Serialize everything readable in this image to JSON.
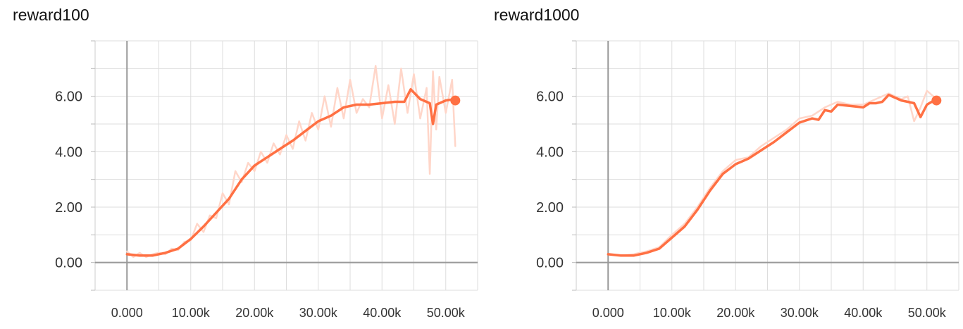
{
  "colors": {
    "line": "#ff7043",
    "raw": "#ffd6c9",
    "grid": "#dddddd",
    "axis": "#999999",
    "tick_text": "#333333"
  },
  "chart_data": [
    {
      "type": "line",
      "title": "reward100",
      "xlim": [
        -5000,
        55000
      ],
      "ylim": [
        -1,
        8
      ],
      "grid": true,
      "x_ticks": [
        0,
        10000,
        20000,
        30000,
        40000,
        50000
      ],
      "x_tick_labels": [
        "0.000",
        "10.00k",
        "20.00k",
        "30.00k",
        "40.00k",
        "50.00k"
      ],
      "y_ticks": [
        0,
        2,
        4,
        6
      ],
      "y_tick_labels": [
        "0.00",
        "2.00",
        "4.00",
        "6.00"
      ],
      "series": [
        {
          "role": "smoothed",
          "x": [
            0,
            2000,
            4000,
            6000,
            8000,
            10000,
            12000,
            14000,
            16000,
            18000,
            20000,
            22000,
            24000,
            26000,
            28000,
            30000,
            32000,
            34000,
            36000,
            38000,
            40000,
            42000,
            43500,
            44500,
            46000,
            47500,
            48000,
            48500,
            50000,
            51500
          ],
          "y": [
            0.3,
            0.25,
            0.25,
            0.35,
            0.5,
            0.85,
            1.3,
            1.8,
            2.3,
            3.0,
            3.5,
            3.8,
            4.1,
            4.4,
            4.75,
            5.1,
            5.3,
            5.6,
            5.7,
            5.7,
            5.75,
            5.8,
            5.8,
            6.25,
            5.9,
            5.75,
            5.0,
            5.7,
            5.85,
            5.9
          ]
        },
        {
          "role": "raw",
          "x": [
            0,
            1000,
            2000,
            3000,
            4000,
            5000,
            6000,
            7000,
            8000,
            9000,
            10000,
            11000,
            12000,
            13000,
            14000,
            15000,
            16000,
            17000,
            18000,
            19000,
            20000,
            21000,
            22000,
            23000,
            24000,
            25000,
            26000,
            27000,
            28000,
            29000,
            30000,
            31000,
            32000,
            33000,
            34000,
            35000,
            36000,
            37000,
            38000,
            39000,
            40000,
            41000,
            42000,
            43000,
            44000,
            45000,
            46000,
            47000,
            47500,
            48000,
            48500,
            49000,
            50000,
            51000,
            51500
          ],
          "y": [
            0.4,
            0.2,
            0.35,
            0.2,
            0.3,
            0.35,
            0.3,
            0.5,
            0.45,
            0.75,
            0.8,
            1.4,
            1.1,
            1.7,
            1.6,
            2.5,
            2.1,
            3.3,
            2.9,
            3.6,
            3.3,
            4.0,
            3.6,
            4.3,
            3.9,
            4.6,
            4.1,
            5.1,
            4.4,
            5.4,
            4.8,
            6.0,
            4.9,
            6.3,
            5.2,
            6.6,
            5.4,
            5.9,
            5.6,
            7.1,
            5.2,
            6.4,
            5.0,
            7.0,
            5.4,
            6.8,
            5.2,
            6.3,
            3.2,
            6.9,
            4.8,
            6.7,
            5.4,
            6.6,
            4.2
          ]
        }
      ],
      "end_marker": {
        "x": 51500,
        "y": 5.85
      }
    },
    {
      "type": "line",
      "title": "reward1000",
      "xlim": [
        -5000,
        55000
      ],
      "ylim": [
        -1,
        8
      ],
      "grid": true,
      "x_ticks": [
        0,
        10000,
        20000,
        30000,
        40000,
        50000
      ],
      "x_tick_labels": [
        "0.000",
        "10.00k",
        "20.00k",
        "30.00k",
        "40.00k",
        "50.00k"
      ],
      "y_ticks": [
        0,
        2,
        4,
        6
      ],
      "y_tick_labels": [
        "0.00",
        "2.00",
        "4.00",
        "6.00"
      ],
      "series": [
        {
          "role": "smoothed",
          "x": [
            0,
            2000,
            4000,
            6000,
            8000,
            10000,
            12000,
            14000,
            16000,
            18000,
            20000,
            22000,
            24000,
            26000,
            28000,
            30000,
            32000,
            33000,
            34000,
            35000,
            36000,
            38000,
            40000,
            41000,
            42000,
            43000,
            44000,
            45000,
            46000,
            47000,
            48000,
            49000,
            50000,
            51500
          ],
          "y": [
            0.3,
            0.25,
            0.25,
            0.35,
            0.5,
            0.9,
            1.3,
            1.9,
            2.6,
            3.2,
            3.55,
            3.75,
            4.05,
            4.35,
            4.7,
            5.05,
            5.2,
            5.15,
            5.5,
            5.45,
            5.7,
            5.65,
            5.6,
            5.75,
            5.75,
            5.8,
            6.05,
            5.95,
            5.85,
            5.8,
            5.75,
            5.25,
            5.7,
            5.9
          ]
        },
        {
          "role": "raw",
          "x": [
            0,
            2000,
            4000,
            6000,
            8000,
            10000,
            12000,
            14000,
            16000,
            18000,
            20000,
            22000,
            24000,
            26000,
            28000,
            30000,
            32000,
            34000,
            36000,
            38000,
            40000,
            42000,
            44000,
            45000,
            46000,
            47000,
            48000,
            49000,
            50000,
            51500
          ],
          "y": [
            0.3,
            0.25,
            0.3,
            0.4,
            0.55,
            1.0,
            1.4,
            2.0,
            2.7,
            3.3,
            3.7,
            3.8,
            4.2,
            4.5,
            4.8,
            5.2,
            5.3,
            5.6,
            5.8,
            5.7,
            5.7,
            5.9,
            6.1,
            6.0,
            5.9,
            6.0,
            5.1,
            5.6,
            6.2,
            5.9
          ]
        }
      ],
      "end_marker": {
        "x": 51500,
        "y": 5.85
      }
    }
  ]
}
